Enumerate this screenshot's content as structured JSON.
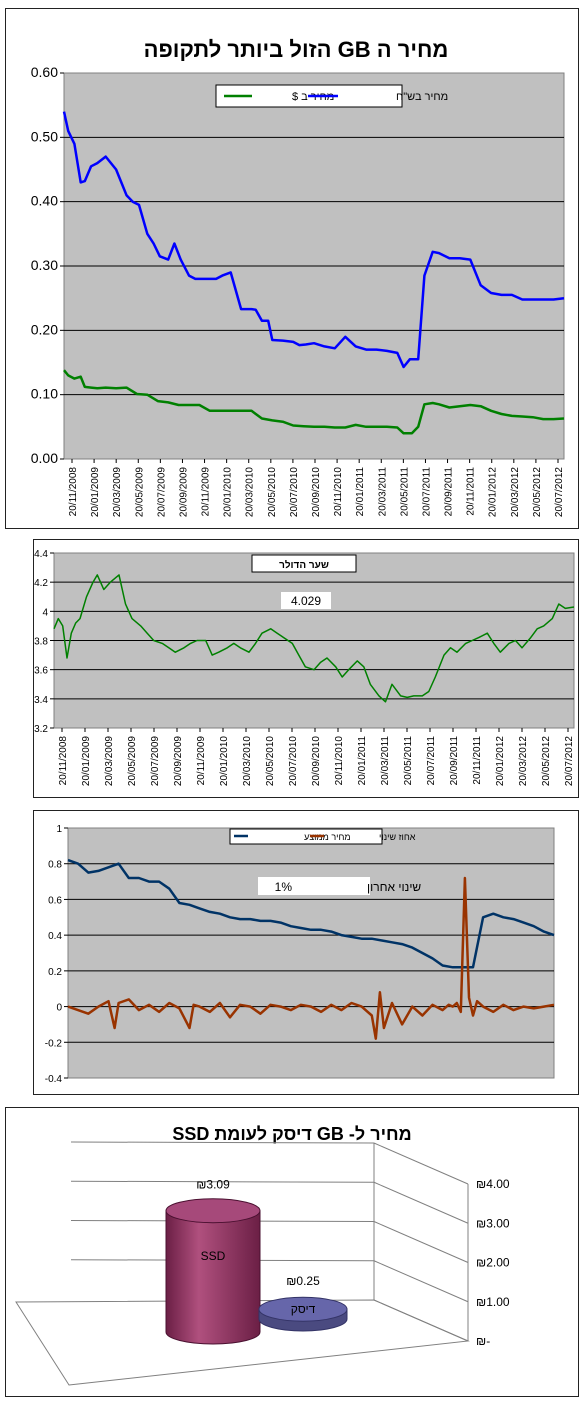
{
  "chart_data": [
    {
      "type": "line",
      "title": "מחיר ה GB הזול ביותר לתקופה",
      "legend": [
        "מחיר ב $",
        "מחיר בש\"ח"
      ],
      "legend_position": "top-center",
      "ylim": [
        0,
        0.6
      ],
      "yticks": [
        "0.00",
        "0.10",
        "0.20",
        "0.30",
        "0.40",
        "0.50",
        "0.60"
      ],
      "xtick_labels": [
        "20/11/2008",
        "20/01/2009",
        "20/03/2009",
        "20/05/2009",
        "20/07/2009",
        "20/09/2009",
        "20/11/2009",
        "20/01/2010",
        "20/03/2010",
        "20/05/2010",
        "20/07/2010",
        "20/09/2010",
        "20/11/2010",
        "20/01/2011",
        "20/03/2011",
        "20/05/2011",
        "20/07/2011",
        "20/09/2011",
        "20/11/2011",
        "20/01/2012",
        "20/03/2012",
        "20/05/2012",
        "20/07/2012"
      ],
      "grid": true,
      "colors": {
        "usd": "#008000",
        "ils": "#0000ff",
        "plot_bg": "#c0c0c0"
      },
      "series": [
        {
          "name": "מחיר ב $",
          "x": [
            0,
            0.2,
            0.5,
            0.8,
            1,
            1.3,
            1.6,
            2,
            2.5,
            3,
            3.5,
            4,
            4.5,
            5,
            5.5,
            6,
            6.5,
            7,
            7.5,
            8,
            8.5,
            9,
            9.5,
            10,
            10.5,
            11,
            11.5,
            12,
            12.5,
            13,
            13.5,
            14,
            14.5,
            15,
            15.5,
            16,
            16.3,
            16.7,
            17,
            17.3,
            17.7,
            18,
            18.5,
            19,
            19.5,
            20,
            20.5,
            21,
            21.5,
            22,
            22.5,
            23,
            23.5,
            24
          ],
          "values": [
            0.138,
            0.13,
            0.125,
            0.128,
            0.112,
            0.111,
            0.11,
            0.111,
            0.11,
            0.111,
            0.101,
            0.1,
            0.09,
            0.088,
            0.084,
            0.084,
            0.084,
            0.075,
            0.075,
            0.075,
            0.075,
            0.075,
            0.063,
            0.06,
            0.058,
            0.052,
            0.051,
            0.05,
            0.05,
            0.049,
            0.049,
            0.053,
            0.05,
            0.05,
            0.05,
            0.049,
            0.04,
            0.04,
            0.05,
            0.085,
            0.087,
            0.085,
            0.08,
            0.082,
            0.084,
            0.082,
            0.075,
            0.07,
            0.067,
            0.066,
            0.065,
            0.062,
            0.062,
            0.063
          ]
        },
        {
          "name": "מחיר בש\"ח",
          "x": [
            0,
            0.2,
            0.5,
            0.8,
            1,
            1.3,
            1.6,
            2,
            2.5,
            3,
            3.3,
            3.6,
            4,
            4.3,
            4.6,
            5,
            5.3,
            5.6,
            6,
            6.3,
            6.6,
            7,
            7.3,
            7.6,
            8,
            8.5,
            9,
            9.2,
            9.5,
            9.8,
            10,
            10.5,
            11,
            11.3,
            11.6,
            12,
            12.5,
            13,
            13.5,
            14,
            14.5,
            15,
            15.5,
            16,
            16.3,
            16.6,
            17,
            17.3,
            17.7,
            18,
            18.5,
            19,
            19.5,
            20,
            20.5,
            21,
            21.5,
            22,
            22.5,
            23,
            23.5,
            24
          ],
          "values": [
            0.54,
            0.51,
            0.49,
            0.43,
            0.432,
            0.455,
            0.46,
            0.47,
            0.45,
            0.41,
            0.4,
            0.395,
            0.35,
            0.335,
            0.315,
            0.31,
            0.335,
            0.31,
            0.285,
            0.28,
            0.28,
            0.28,
            0.28,
            0.285,
            0.29,
            0.233,
            0.233,
            0.232,
            0.215,
            0.215,
            0.185,
            0.184,
            0.182,
            0.177,
            0.178,
            0.18,
            0.175,
            0.172,
            0.19,
            0.175,
            0.17,
            0.17,
            0.168,
            0.165,
            0.143,
            0.155,
            0.155,
            0.285,
            0.322,
            0.32,
            0.312,
            0.312,
            0.31,
            0.27,
            0.258,
            0.255,
            0.255,
            0.248,
            0.248,
            0.248,
            0.248,
            0.25
          ]
        }
      ]
    },
    {
      "type": "line",
      "title": "שער הדולר",
      "annotation": "4.029",
      "ylim": [
        3.2,
        4.4
      ],
      "yticks": [
        "3.2",
        "3.4",
        "3.6",
        "3.8",
        "4",
        "4.2",
        "4.4"
      ],
      "xtick_labels": [
        "20/11/2008",
        "20/01/2009",
        "20/03/2009",
        "20/05/2009",
        "20/07/2009",
        "20/09/2009",
        "20/11/2009",
        "20/01/2010",
        "20/03/2010",
        "20/05/2010",
        "20/07/2010",
        "20/09/2010",
        "20/11/2010",
        "20/01/2011",
        "20/03/2011",
        "20/05/2011",
        "20/07/2011",
        "20/09/2011",
        "20/11/2011",
        "20/01/2012",
        "20/03/2012",
        "20/05/2012",
        "20/07/2012"
      ],
      "grid": true,
      "colors": {
        "line": "#008000",
        "plot_bg": "#c0c0c0"
      },
      "series": [
        {
          "name": "",
          "x": [
            0,
            0.2,
            0.4,
            0.6,
            0.8,
            1,
            1.2,
            1.5,
            1.8,
            2,
            2.3,
            2.6,
            3,
            3.3,
            3.6,
            4,
            4.3,
            4.6,
            5,
            5.3,
            5.6,
            6,
            6.3,
            6.6,
            7,
            7.3,
            7.6,
            8,
            8.3,
            8.6,
            9,
            9.3,
            9.6,
            10,
            10.3,
            10.6,
            11,
            11.3,
            11.6,
            12,
            12.3,
            12.6,
            13,
            13.3,
            13.6,
            14,
            14.3,
            14.6,
            15,
            15.3,
            15.6,
            16,
            16.3,
            16.6,
            17,
            17.3,
            17.6,
            18,
            18.3,
            18.6,
            19,
            19.3,
            19.6,
            20,
            20.3,
            20.6,
            21,
            21.3,
            21.6,
            22,
            22.3,
            22.6,
            23,
            23.3,
            23.6,
            24
          ],
          "values": [
            3.88,
            3.95,
            3.9,
            3.68,
            3.85,
            3.92,
            3.95,
            4.1,
            4.2,
            4.25,
            4.15,
            4.2,
            4.25,
            4.05,
            3.95,
            3.9,
            3.85,
            3.8,
            3.78,
            3.75,
            3.72,
            3.75,
            3.78,
            3.8,
            3.8,
            3.7,
            3.72,
            3.75,
            3.78,
            3.75,
            3.72,
            3.78,
            3.85,
            3.88,
            3.85,
            3.82,
            3.78,
            3.7,
            3.62,
            3.6,
            3.65,
            3.68,
            3.62,
            3.55,
            3.6,
            3.66,
            3.62,
            3.5,
            3.42,
            3.38,
            3.5,
            3.42,
            3.41,
            3.42,
            3.42,
            3.45,
            3.55,
            3.7,
            3.75,
            3.72,
            3.78,
            3.8,
            3.82,
            3.85,
            3.78,
            3.72,
            3.78,
            3.8,
            3.75,
            3.82,
            3.88,
            3.9,
            3.95,
            4.05,
            4.02,
            4.03
          ]
        }
      ]
    },
    {
      "type": "line",
      "title": "",
      "legend": [
        "מחיר ממוצע",
        "אחוז שינוי"
      ],
      "legend_position": "top-right",
      "annotation": "1%",
      "annotation_label": "שינוי אחרון",
      "ylim": [
        -0.4,
        1
      ],
      "yticks": [
        "-0.4",
        "-0.2",
        "0",
        "0.2",
        "0.4",
        "0.6",
        "0.8",
        "1"
      ],
      "grid": true,
      "colors": {
        "avg": "#003366",
        "change": "#993300",
        "plot_bg": "#c0c0c0"
      },
      "series": [
        {
          "name": "מחיר ממוצע",
          "x": [
            0,
            0.5,
            1,
            1.5,
            2,
            2.5,
            3,
            3.5,
            4,
            4.5,
            5,
            5.5,
            6,
            6.5,
            7,
            7.5,
            8,
            8.5,
            9,
            9.5,
            10,
            10.5,
            11,
            11.5,
            12,
            12.5,
            13,
            13.5,
            14,
            14.5,
            15,
            15.5,
            16,
            16.5,
            17,
            17.5,
            18,
            18.5,
            19,
            19.5,
            20,
            20.5,
            21,
            21.5,
            22,
            22.5,
            23,
            23.5,
            24
          ],
          "values": [
            0.82,
            0.8,
            0.75,
            0.76,
            0.78,
            0.8,
            0.72,
            0.72,
            0.7,
            0.7,
            0.66,
            0.58,
            0.57,
            0.55,
            0.53,
            0.52,
            0.5,
            0.49,
            0.49,
            0.48,
            0.48,
            0.47,
            0.45,
            0.44,
            0.43,
            0.43,
            0.42,
            0.4,
            0.39,
            0.38,
            0.38,
            0.37,
            0.36,
            0.35,
            0.33,
            0.3,
            0.27,
            0.23,
            0.22,
            0.22,
            0.22,
            0.5,
            0.52,
            0.5,
            0.49,
            0.47,
            0.45,
            0.42,
            0.4
          ]
        },
        {
          "name": "אחוז שינוי",
          "x": [
            0,
            1,
            1.5,
            2,
            2.3,
            2.5,
            3,
            3.5,
            4,
            4.5,
            5,
            5.5,
            6,
            6.2,
            6.5,
            7,
            7.5,
            8,
            8.5,
            9,
            9.5,
            10,
            10.5,
            11,
            11.5,
            12,
            12.5,
            13,
            13.5,
            14,
            14.5,
            15,
            15.2,
            15.4,
            15.6,
            16,
            16.5,
            17,
            17.5,
            18,
            18.5,
            18.8,
            19,
            19.2,
            19.4,
            19.6,
            19.8,
            20,
            20.2,
            20.5,
            21,
            21.5,
            22,
            22.5,
            23,
            23.5,
            24
          ],
          "values": [
            0,
            -0.04,
            0,
            0.03,
            -0.12,
            0.02,
            0.04,
            -0.02,
            0.01,
            -0.03,
            0.02,
            -0.01,
            -0.12,
            0.01,
            0,
            -0.03,
            0.02,
            -0.06,
            0.01,
            0,
            -0.04,
            0.01,
            0,
            -0.02,
            0.01,
            0,
            -0.03,
            0.01,
            -0.02,
            0.02,
            0,
            -0.05,
            -0.18,
            0.08,
            -0.12,
            0.02,
            -0.1,
            0,
            -0.05,
            0.01,
            -0.02,
            0.01,
            0,
            0.02,
            -0.03,
            0.72,
            0.05,
            -0.05,
            0.03,
            0,
            -0.03,
            0.01,
            -0.02,
            0,
            -0.01,
            0,
            0.01
          ]
        }
      ]
    },
    {
      "type": "bar",
      "title": "מחיר ל- GB דיסק לעומת  SSD",
      "categories": [
        "SSD",
        "דיסק"
      ],
      "values": [
        3.09,
        0.25
      ],
      "data_labels": [
        "₪3.09",
        "₪0.25"
      ],
      "ylim": [
        0,
        4
      ],
      "yticks": [
        "₪-",
        "₪1.00",
        "₪2.00",
        "₪3.00",
        "₪4.00"
      ],
      "style": "3d-cylinder",
      "colors": {
        "ssd": "#993366",
        "disk": "#6666aa"
      }
    }
  ]
}
